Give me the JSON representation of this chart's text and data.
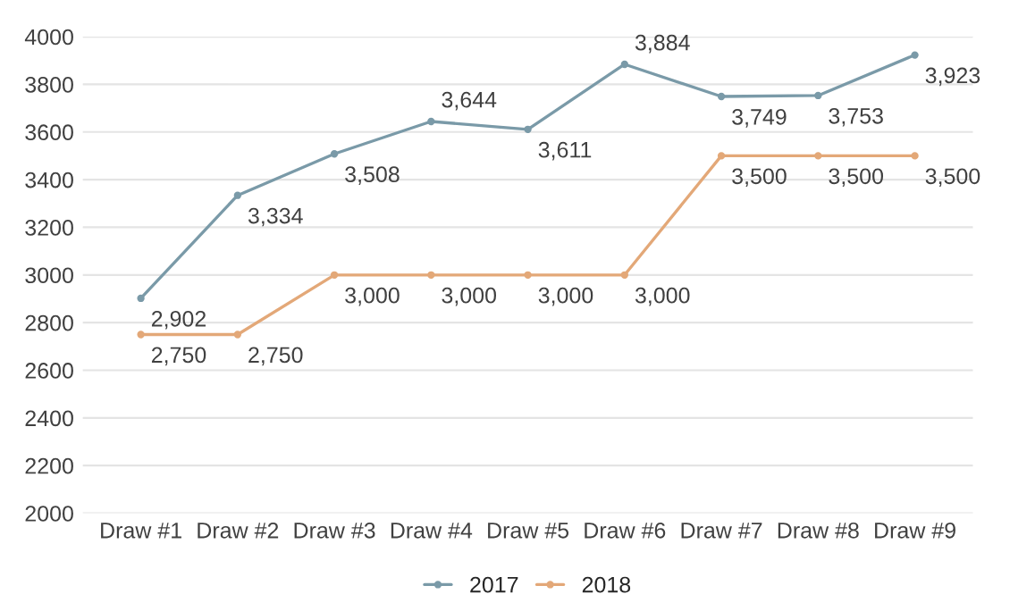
{
  "chart_data": {
    "type": "line",
    "categories": [
      "Draw #1",
      "Draw #2",
      "Draw #3",
      "Draw #4",
      "Draw #5",
      "Draw #6",
      "Draw #7",
      "Draw #8",
      "Draw #9"
    ],
    "series": [
      {
        "name": "2017",
        "color": "#7a9aa8",
        "values": [
          2902,
          3334,
          3508,
          3644,
          3611,
          3884,
          3749,
          3753,
          3923
        ],
        "value_labels": [
          "2,902",
          "3,334",
          "3,508",
          "3,644",
          "3,611",
          "3,884",
          "3,749",
          "3,753",
          "3,923"
        ]
      },
      {
        "name": "2018",
        "color": "#e3a878",
        "values": [
          2750,
          2750,
          3000,
          3000,
          3000,
          3000,
          3500,
          3500,
          3500
        ],
        "value_labels": [
          "2,750",
          "2,750",
          "3,000",
          "3,000",
          "3,000",
          "3,000",
          "3,500",
          "3,500",
          "3,500"
        ]
      }
    ],
    "ylim": [
      2000,
      4000
    ],
    "yticks": [
      2000,
      2200,
      2400,
      2600,
      2800,
      3000,
      3200,
      3400,
      3600,
      3800,
      4000
    ],
    "grid": "y",
    "legend": "bottom",
    "marker": "circle",
    "line_style": "solid"
  }
}
